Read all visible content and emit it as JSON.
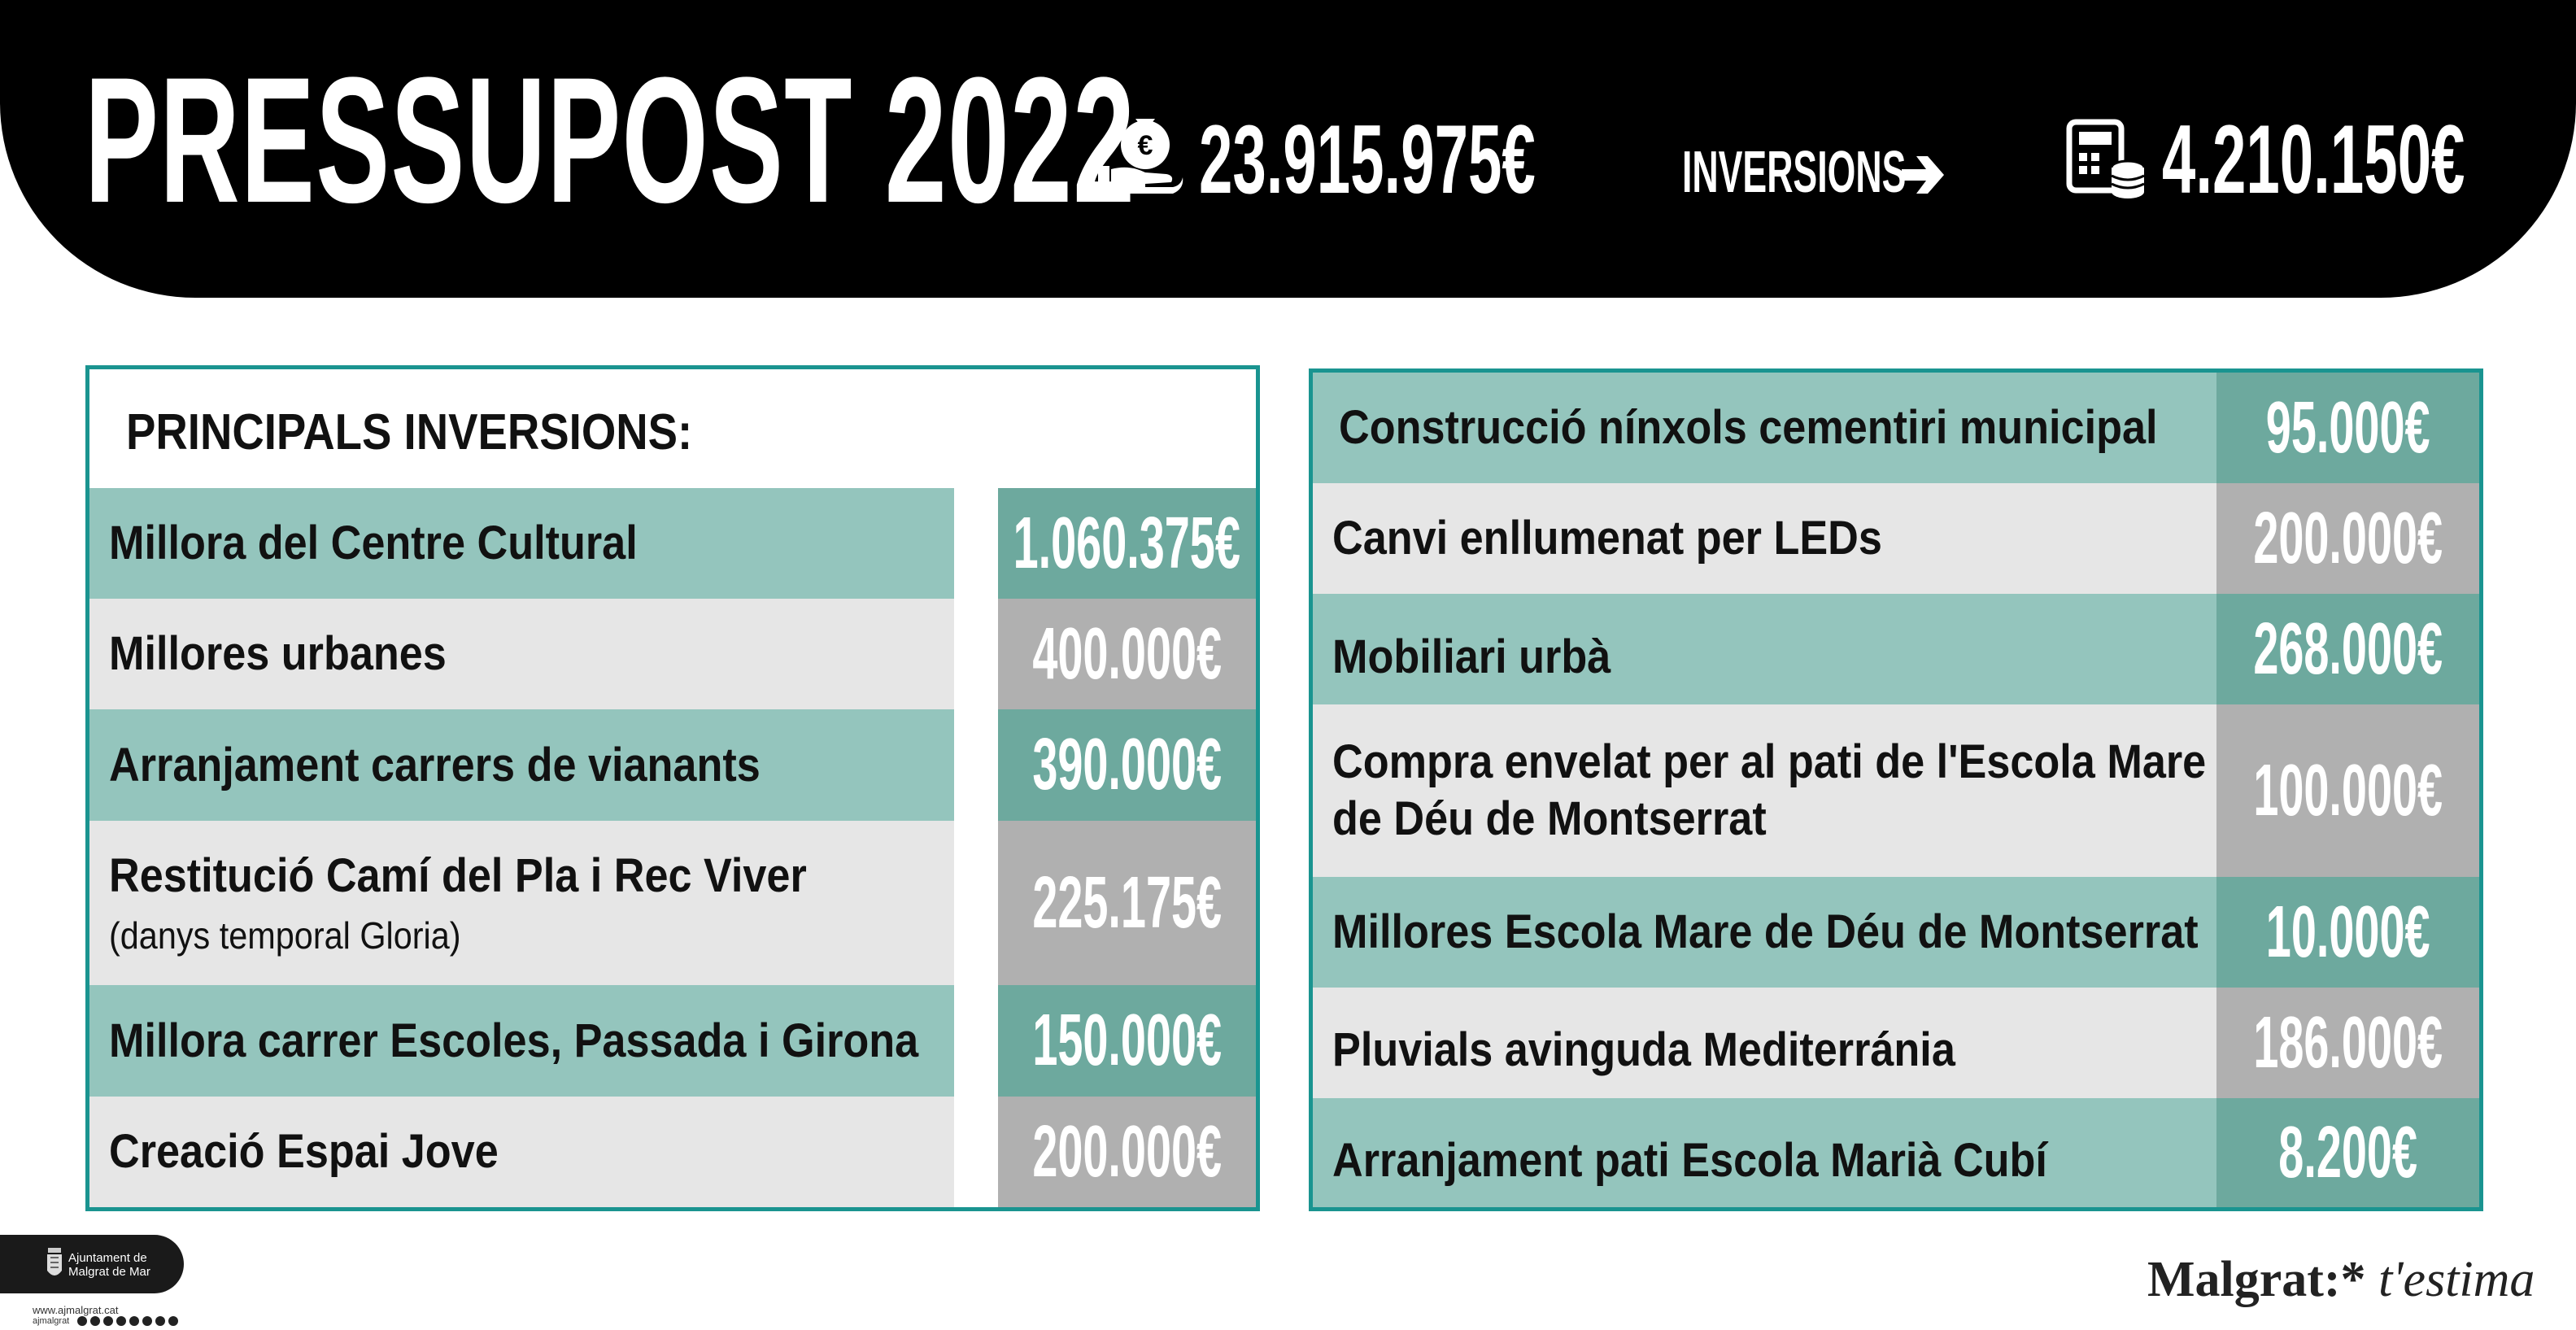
{
  "header": {
    "title": "PRESSUPOST 2022",
    "total_budget": "23.915.975€",
    "inversions_label": "INVERSIONS",
    "inversions_total": "4.210.150€",
    "icons": [
      "money-bag-hand-icon",
      "arrow-right-icon",
      "calculator-coins-icon"
    ]
  },
  "left_table": {
    "heading": "PRINCIPALS INVERSIONS:",
    "rows": [
      {
        "name": "Millora del Centre Cultural",
        "sub": "",
        "value": "1.060.375€"
      },
      {
        "name": "Millores urbanes",
        "sub": "",
        "value": "400.000€"
      },
      {
        "name": "Arranjament carrers de vianants",
        "sub": "",
        "value": "390.000€"
      },
      {
        "name": "Restitució Camí del Pla i Rec Viver",
        "sub": "(danys temporal Gloria)",
        "value": "225.175€"
      },
      {
        "name": "Millora carrer Escoles, Passada i Girona",
        "sub": "",
        "value": "150.000€"
      },
      {
        "name": "Creació Espai Jove",
        "sub": "",
        "value": "200.000€"
      }
    ]
  },
  "right_table": {
    "rows": [
      {
        "name": "Construcció nínxols cementiri municipal",
        "value": "95.000€"
      },
      {
        "name": "Canvi enllumenat per LEDs",
        "value": "200.000€"
      },
      {
        "name": "Mobiliari urbà",
        "value": "268.000€"
      },
      {
        "name": "Compra envelat per al pati de l'Escola Mare",
        "name2": "de Déu de Montserrat",
        "value": "100.000€"
      },
      {
        "name": "Millores Escola Mare de Déu de Montserrat",
        "value": "10.000€"
      },
      {
        "name": "Pluvials avinguda Mediterránia",
        "value": "186.000€"
      },
      {
        "name": "Arranjament pati Escola Marià Cubí",
        "value": "8.200€"
      }
    ]
  },
  "footer": {
    "org_line1": "Ajuntament de",
    "org_line2": "Malgrat de Mar",
    "url": "www.ajmalgrat.cat",
    "handle": "ajmalgrat",
    "brand_bold": "Malgrat:*",
    "brand_italic": " t'estima"
  },
  "colors": {
    "teal_light": "#94c5bd",
    "teal_dark": "#6da99e",
    "grey_light": "#e6e6e6",
    "grey_dark": "#b0b0b0",
    "border": "#1a9490"
  }
}
